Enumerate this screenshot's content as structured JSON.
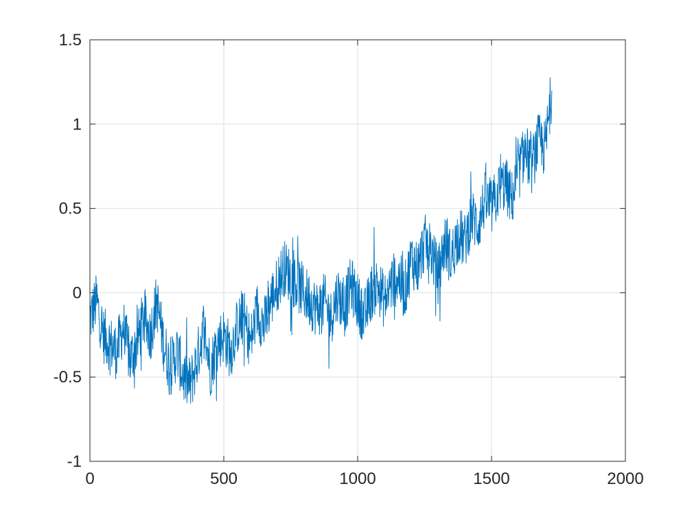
{
  "chart_data": {
    "type": "line",
    "title": "",
    "xlabel": "",
    "ylabel": "",
    "xlim": [
      0,
      2000
    ],
    "ylim": [
      -1,
      1.5
    ],
    "x_ticks": [
      0,
      500,
      1000,
      1500,
      2000
    ],
    "y_ticks": [
      -1,
      -0.5,
      0,
      0.5,
      1,
      1.5
    ],
    "x_tick_labels": [
      "0",
      "500",
      "1000",
      "1500",
      "2000"
    ],
    "y_tick_labels": [
      "-1",
      "-0.5",
      "0",
      "0.5",
      "1",
      "1.5"
    ],
    "grid": true,
    "line_color": "#0072BD",
    "series": [
      {
        "x": [
          0,
          25,
          50,
          75,
          100,
          125,
          150,
          175,
          200,
          225,
          250,
          275,
          300,
          325,
          350,
          375,
          400,
          425,
          450,
          475,
          500,
          525,
          550,
          575,
          600,
          625,
          650,
          675,
          700,
          725,
          750,
          775,
          800,
          825,
          850,
          875,
          900,
          925,
          950,
          975,
          1000,
          1025,
          1050,
          1075,
          1100,
          1125,
          1150,
          1175,
          1200,
          1225,
          1250,
          1275,
          1300,
          1325,
          1350,
          1375,
          1400,
          1425,
          1450,
          1475,
          1500,
          1525,
          1550,
          1575,
          1600,
          1625,
          1650,
          1675,
          1700,
          1725
        ],
        "y": [
          -0.15,
          -0.05,
          -0.25,
          -0.3,
          -0.35,
          -0.2,
          -0.4,
          -0.3,
          -0.15,
          -0.25,
          -0.05,
          -0.3,
          -0.45,
          -0.35,
          -0.5,
          -0.55,
          -0.4,
          -0.2,
          -0.45,
          -0.3,
          -0.25,
          -0.35,
          -0.2,
          -0.15,
          -0.3,
          -0.1,
          -0.2,
          -0.05,
          0.05,
          0.15,
          0.1,
          0.05,
          0.0,
          -0.05,
          -0.1,
          -0.05,
          -0.15,
          0.0,
          -0.1,
          0.05,
          -0.05,
          -0.15,
          0.0,
          0.05,
          -0.05,
          0.05,
          0.1,
          0.0,
          0.2,
          0.15,
          0.3,
          0.25,
          0.1,
          0.3,
          0.2,
          0.35,
          0.3,
          0.45,
          0.4,
          0.55,
          0.5,
          0.6,
          0.65,
          0.55,
          0.7,
          0.85,
          0.75,
          0.9,
          0.85,
          1.2
        ]
      }
    ]
  }
}
